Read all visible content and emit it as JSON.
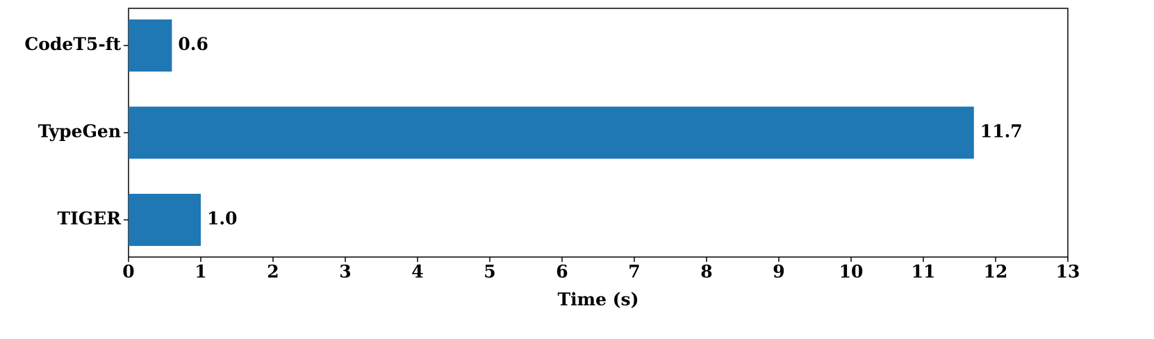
{
  "chart_data": {
    "type": "barh",
    "xlabel": "Time (s)",
    "categories": [
      "CodeT5-ft",
      "TypeGen",
      "TIGER"
    ],
    "values": [
      0.6,
      11.7,
      1.0
    ],
    "value_labels": [
      "0.6",
      "11.7",
      "1.0"
    ],
    "color": "#1f77b4",
    "xlim": [
      0,
      13
    ],
    "xticks": [
      0,
      1,
      2,
      3,
      4,
      5,
      6,
      7,
      8,
      9,
      10,
      11,
      12,
      13
    ]
  }
}
